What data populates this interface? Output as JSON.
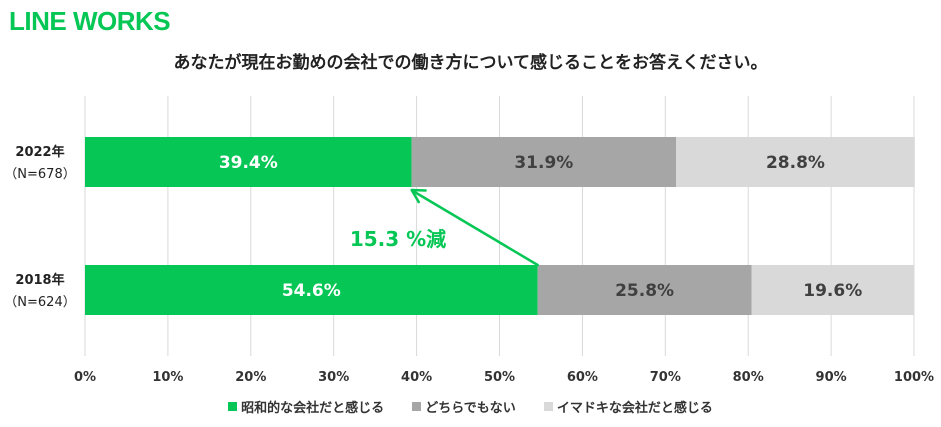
{
  "logo_text": "LINE WORKS",
  "chart_data": {
    "type": "bar",
    "orientation": "horizontal",
    "stacked": true,
    "title": "あなたが現在お勤めの会社での働き方について感じることをお答えください。",
    "categories": [
      {
        "year": "2022年",
        "n": "（N=678）"
      },
      {
        "year": "2018年",
        "n": "（N=624）"
      }
    ],
    "series": [
      {
        "name": "昭和的な会社だと感じる",
        "color": "#06C755",
        "label_color": "#ffffff",
        "values": [
          39.4,
          54.6
        ],
        "labels": [
          "39.4%",
          "54.6%"
        ]
      },
      {
        "name": "どちらでもない",
        "color": "#A6A6A6",
        "label_color": "#404040",
        "values": [
          31.9,
          25.8
        ],
        "labels": [
          "31.9%",
          "25.8%"
        ]
      },
      {
        "name": "イマドキな会社だと感じる",
        "color": "#D9D9D9",
        "label_color": "#404040",
        "values": [
          28.8,
          19.6
        ],
        "labels": [
          "28.8%",
          "19.6%"
        ]
      }
    ],
    "xlim": [
      0,
      100
    ],
    "xticks": [
      "0%",
      "10%",
      "20%",
      "30%",
      "40%",
      "50%",
      "60%",
      "70%",
      "80%",
      "90%",
      "100%"
    ],
    "grid": true,
    "legend_position": "bottom",
    "annotation": {
      "text": "15.3 %減",
      "color": "#06C755",
      "from_value": 54.6,
      "to_value": 39.4
    }
  }
}
